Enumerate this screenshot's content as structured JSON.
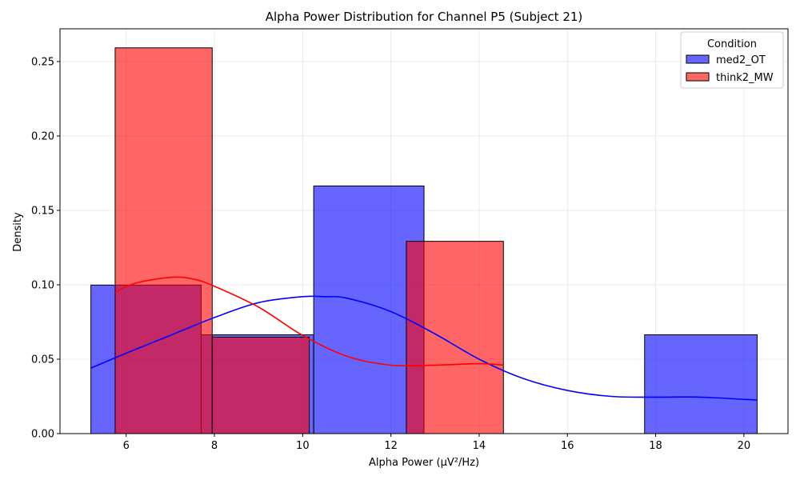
{
  "chart_data": {
    "type": "bar",
    "title": "Alpha Power Distribution for Channel P5 (Subject 21)",
    "xlabel": "Alpha Power (µV²/Hz)",
    "ylabel": "Density",
    "xlim": [
      4.5,
      21.0
    ],
    "ylim": [
      0,
      0.272
    ],
    "xticks": [
      6,
      8,
      10,
      12,
      14,
      16,
      18,
      20
    ],
    "yticks": [
      0.0,
      0.05,
      0.1,
      0.15,
      0.2,
      0.25
    ],
    "ytick_labels": [
      "0.00",
      "0.05",
      "0.10",
      "0.15",
      "0.20",
      "0.25"
    ],
    "grid": true,
    "legend": {
      "title": "Condition",
      "position": "top-right"
    },
    "series": [
      {
        "name": "med2_OT",
        "color": "#0000ff",
        "bars": [
          {
            "x0": 5.2,
            "x1": 7.7,
            "density": 0.0998
          },
          {
            "x0": 7.7,
            "x1": 10.25,
            "density": 0.0664
          },
          {
            "x0": 10.25,
            "x1": 12.75,
            "density": 0.1664
          },
          {
            "x0": 12.75,
            "x1": 15.25,
            "density": 0.0
          },
          {
            "x0": 15.25,
            "x1": 17.75,
            "density": 0.0
          },
          {
            "x0": 17.75,
            "x1": 20.3,
            "density": 0.0664
          }
        ],
        "kde": [
          [
            5.2,
            0.044
          ],
          [
            6.0,
            0.054
          ],
          [
            7.0,
            0.066
          ],
          [
            8.0,
            0.078
          ],
          [
            9.0,
            0.088
          ],
          [
            10.0,
            0.092
          ],
          [
            10.5,
            0.092
          ],
          [
            11.0,
            0.091
          ],
          [
            12.0,
            0.082
          ],
          [
            13.0,
            0.067
          ],
          [
            14.0,
            0.05
          ],
          [
            15.0,
            0.037
          ],
          [
            16.0,
            0.029
          ],
          [
            17.0,
            0.025
          ],
          [
            18.0,
            0.0245
          ],
          [
            19.0,
            0.0245
          ],
          [
            20.3,
            0.0225
          ]
        ]
      },
      {
        "name": "think2_MW",
        "color": "#ff0000",
        "bars": [
          {
            "x0": 5.75,
            "x1": 7.95,
            "density": 0.2592
          },
          {
            "x0": 7.95,
            "x1": 10.15,
            "density": 0.0648
          },
          {
            "x0": 10.15,
            "x1": 12.35,
            "density": 0.0
          },
          {
            "x0": 12.35,
            "x1": 14.55,
            "density": 0.1292
          }
        ],
        "kde": [
          [
            5.75,
            0.095
          ],
          [
            6.2,
            0.101
          ],
          [
            7.0,
            0.105
          ],
          [
            7.5,
            0.104
          ],
          [
            8.0,
            0.099
          ],
          [
            9.0,
            0.085
          ],
          [
            10.0,
            0.066
          ],
          [
            11.0,
            0.052
          ],
          [
            12.0,
            0.046
          ],
          [
            13.0,
            0.046
          ],
          [
            14.0,
            0.047
          ],
          [
            14.55,
            0.046
          ]
        ]
      }
    ]
  }
}
